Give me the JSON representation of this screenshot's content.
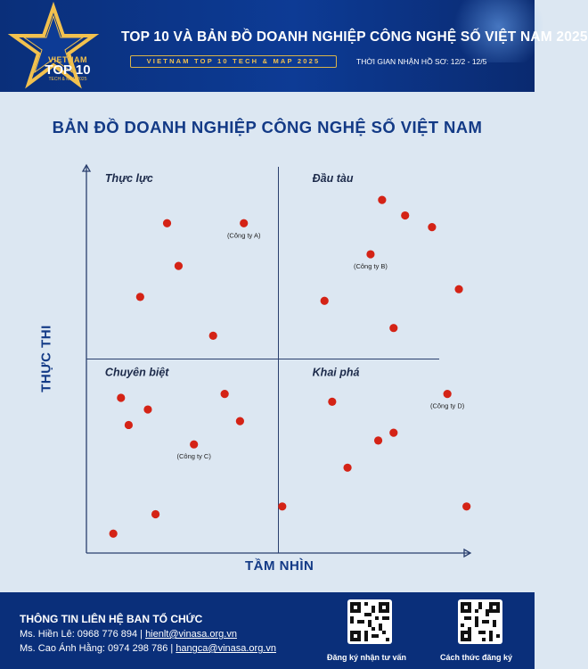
{
  "header": {
    "logo": {
      "line1": "VIETNAM",
      "line2": "TOP 10",
      "line3": "TECH & MAP 2025"
    },
    "title": "TOP 10 VÀ BẢN ĐỒ DOANH NGHIỆP CÔNG NGHỆ SỐ VIỆT NAM 2025",
    "subtitle": "VIETNAM TOP 10 TECH & MAP 2025",
    "deadline": "THỜI GIAN NHẬN HỒ SƠ: 12/2 - 12/5"
  },
  "map_title": "BẢN ĐỒ DOANH NGHIỆP CÔNG NGHỆ SỐ VIỆT NAM",
  "chart_data": {
    "type": "scatter",
    "title": "BẢN ĐỒ DOANH NGHIỆP CÔNG NGHỆ SỐ VIỆT NAM",
    "xlabel": "TẦM NHÌN",
    "ylabel": "THỰC THI",
    "xlim": [
      0,
      100
    ],
    "ylim": [
      0,
      100
    ],
    "grid": false,
    "dividers": {
      "x": 50,
      "y": 50
    },
    "quadrants": [
      {
        "label": "Thực lực",
        "x": 3,
        "y": 97
      },
      {
        "label": "Đầu tàu",
        "x": 57,
        "y": 97
      },
      {
        "label": "Chuyên biệt",
        "x": 3,
        "y": 47
      },
      {
        "label": "Khai phá",
        "x": 57,
        "y": 47
      }
    ],
    "series": [
      {
        "name": "Thực lực",
        "points": [
          {
            "x": 21,
            "y": 85
          },
          {
            "x": 41,
            "y": 85,
            "label": "(Công ty A)"
          },
          {
            "x": 24,
            "y": 74
          },
          {
            "x": 14,
            "y": 66
          },
          {
            "x": 33,
            "y": 56
          }
        ]
      },
      {
        "name": "Đầu tàu",
        "points": [
          {
            "x": 77,
            "y": 91
          },
          {
            "x": 83,
            "y": 87
          },
          {
            "x": 90,
            "y": 84
          },
          {
            "x": 74,
            "y": 77,
            "label": "(Công ty B)"
          },
          {
            "x": 97,
            "y": 68
          },
          {
            "x": 62,
            "y": 65
          },
          {
            "x": 80,
            "y": 58
          }
        ]
      },
      {
        "name": "Chuyên biệt",
        "points": [
          {
            "x": 36,
            "y": 41
          },
          {
            "x": 9,
            "y": 40
          },
          {
            "x": 16,
            "y": 37
          },
          {
            "x": 40,
            "y": 34
          },
          {
            "x": 11,
            "y": 33
          },
          {
            "x": 28,
            "y": 28,
            "label": "(Công ty C)"
          },
          {
            "x": 51,
            "y": 12
          },
          {
            "x": 18,
            "y": 10
          },
          {
            "x": 7,
            "y": 5
          }
        ]
      },
      {
        "name": "Khai phá",
        "points": [
          {
            "x": 94,
            "y": 41,
            "label": "(Công ty D)"
          },
          {
            "x": 64,
            "y": 39
          },
          {
            "x": 80,
            "y": 31
          },
          {
            "x": 76,
            "y": 29
          },
          {
            "x": 68,
            "y": 22
          },
          {
            "x": 99,
            "y": 12
          }
        ]
      }
    ],
    "point_color": "#d42316",
    "axis_color": "#2a3f6e"
  },
  "footer": {
    "title": "THÔNG TIN LIÊN HỆ BAN TỔ CHỨC",
    "contact1_text": "Ms. Hiền Lê: 0968 776 894 | ",
    "contact1_email": "hienlt@vinasa.org.vn",
    "contact2_text": "Ms. Cao Ánh Hằng: 0974 298 786 | ",
    "contact2_email": "hangca@vinasa.org.vn",
    "qr1_label": "Đăng ký nhận tư vấn",
    "qr2_label": "Cách thức đăng ký"
  },
  "colors": {
    "navy": "#0a2f7a",
    "accent_gold": "#f2c14e",
    "title_blue": "#133a86",
    "background": "#dce7f2"
  }
}
